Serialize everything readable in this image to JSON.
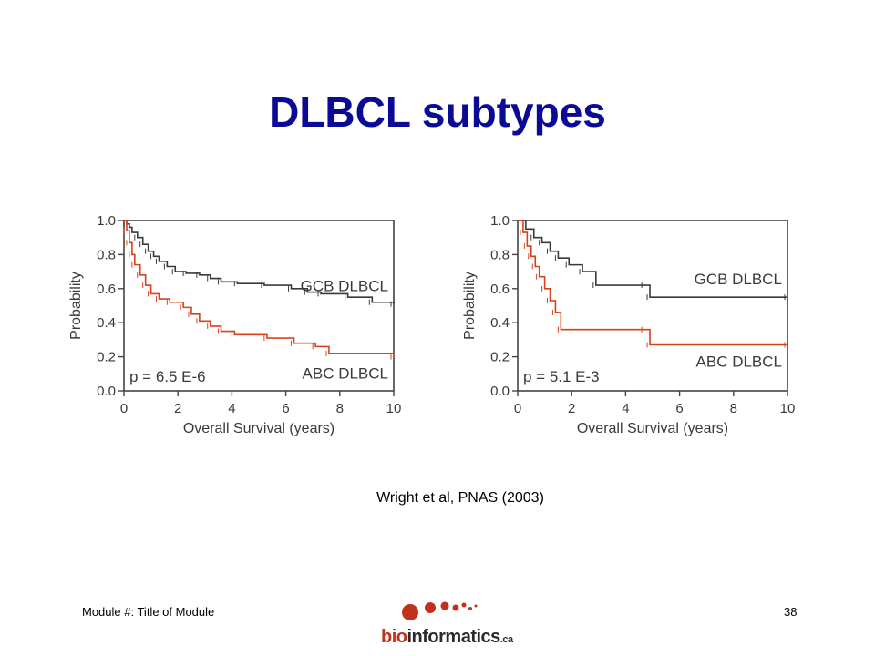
{
  "slide": {
    "title": "DLBCL subtypes",
    "citation": "Wright et al, PNAS (2003)",
    "footer_left": "Module #: Title of Module",
    "slide_number": "38"
  },
  "logo": {
    "bio": "bio",
    "rest": "informatics",
    "tld": ".ca",
    "brand_color": "#c0321e",
    "text_color": "#2b2b2b"
  },
  "colors": {
    "title": "#0a0a96",
    "gcb_curve": "#3a3a3a",
    "abc_curve": "#d9401e"
  },
  "chart_data": [
    {
      "type": "line",
      "xlabel": "Overall Survival (years)",
      "ylabel": "Probability",
      "xlim": [
        0,
        10
      ],
      "ylim": [
        0,
        1
      ],
      "xticks": [
        "0",
        "2",
        "4",
        "6",
        "8",
        "10"
      ],
      "yticks": [
        "0.0",
        "0.2",
        "0.4",
        "0.6",
        "0.8",
        "1.0"
      ],
      "annotation": "p = 6.5 E-6",
      "series": [
        {
          "name": "GCB DLBCL",
          "color": "#3a3a3a",
          "x": [
            0,
            0.1,
            0.2,
            0.3,
            0.5,
            0.7,
            0.9,
            1.1,
            1.3,
            1.6,
            1.9,
            2.3,
            2.8,
            3.2,
            3.6,
            4.2,
            5.2,
            6.2,
            6.8,
            7.3,
            8.3,
            9.2,
            10
          ],
          "y": [
            1.0,
            0.98,
            0.96,
            0.93,
            0.9,
            0.86,
            0.82,
            0.79,
            0.76,
            0.73,
            0.7,
            0.69,
            0.68,
            0.66,
            0.64,
            0.63,
            0.62,
            0.6,
            0.58,
            0.57,
            0.55,
            0.52,
            0.51
          ]
        },
        {
          "name": "ABC DLBCL",
          "color": "#d9401e",
          "x": [
            0,
            0.1,
            0.2,
            0.3,
            0.4,
            0.6,
            0.8,
            1.0,
            1.3,
            1.7,
            2.2,
            2.5,
            2.8,
            3.2,
            3.6,
            4.1,
            5.3,
            6.3,
            7.1,
            7.6,
            10
          ],
          "y": [
            1.0,
            0.94,
            0.87,
            0.8,
            0.74,
            0.68,
            0.62,
            0.57,
            0.54,
            0.52,
            0.49,
            0.45,
            0.41,
            0.38,
            0.35,
            0.33,
            0.31,
            0.28,
            0.26,
            0.22,
            0.2
          ]
        }
      ]
    },
    {
      "type": "line",
      "xlabel": "Overall Survival (years)",
      "ylabel": "Probability",
      "xlim": [
        0,
        10
      ],
      "ylim": [
        0,
        1
      ],
      "xticks": [
        "0",
        "2",
        "4",
        "6",
        "8",
        "10"
      ],
      "yticks": [
        "0.0",
        "0.2",
        "0.4",
        "0.6",
        "0.8",
        "1.0"
      ],
      "annotation": "p = 5.1 E-3",
      "series": [
        {
          "name": "GCB DLBCL",
          "color": "#3a3a3a",
          "x": [
            0,
            0.3,
            0.6,
            0.9,
            1.2,
            1.5,
            1.9,
            2.4,
            2.9,
            4.7,
            4.9,
            10
          ],
          "y": [
            1.0,
            0.95,
            0.9,
            0.87,
            0.82,
            0.78,
            0.74,
            0.7,
            0.62,
            0.62,
            0.55,
            0.55
          ]
        },
        {
          "name": "ABC DLBCL",
          "color": "#d9401e",
          "x": [
            0,
            0.2,
            0.35,
            0.5,
            0.65,
            0.8,
            1.0,
            1.2,
            1.4,
            1.6,
            4.7,
            4.9,
            10
          ],
          "y": [
            1.0,
            0.93,
            0.85,
            0.79,
            0.73,
            0.67,
            0.6,
            0.53,
            0.46,
            0.36,
            0.36,
            0.27,
            0.27
          ]
        }
      ]
    }
  ]
}
